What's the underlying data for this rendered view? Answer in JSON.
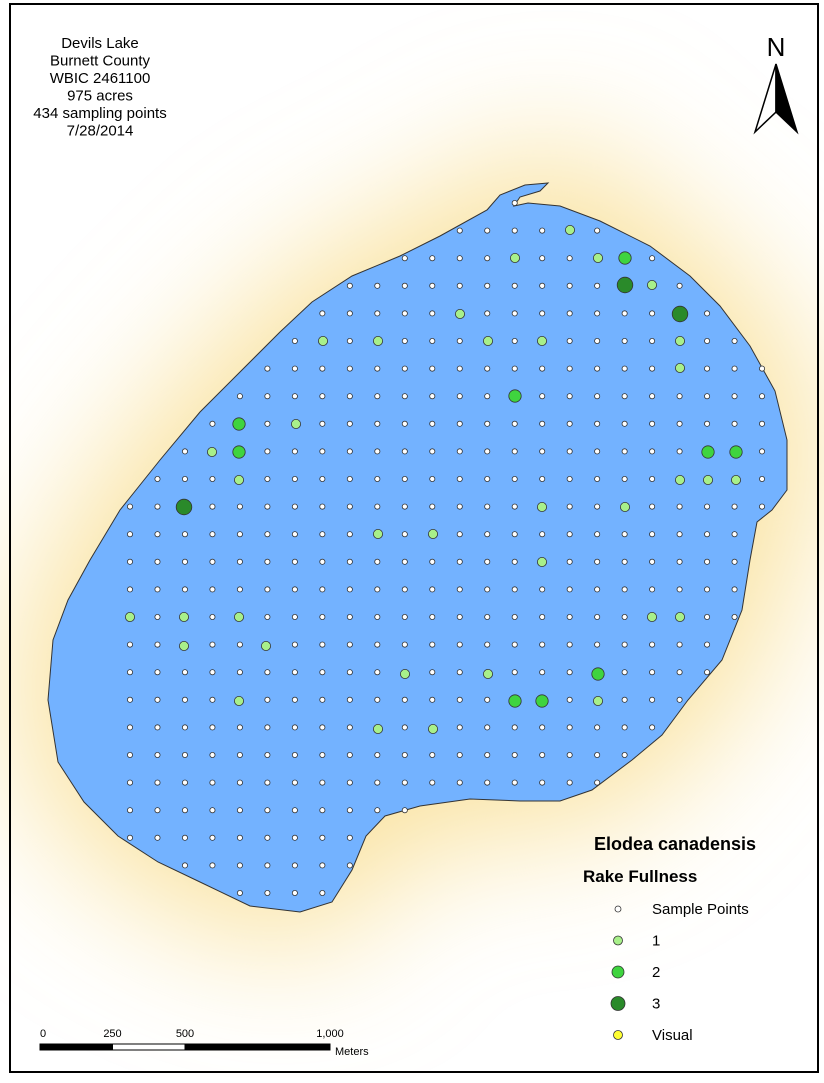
{
  "header": {
    "lines": [
      "Devils Lake",
      "Burnett County",
      "WBIC 2461100",
      "975 acres",
      "434 sampling points",
      "7/28/2014"
    ]
  },
  "north_arrow": "N",
  "legend": {
    "title": "Elodea canadensis",
    "subtitle": "Rake Fullness",
    "items": [
      {
        "label": "Sample Points",
        "color": "#ffffff"
      },
      {
        "label": "1",
        "color": "#a8f08a"
      },
      {
        "label": "2",
        "color": "#3fd43f"
      },
      {
        "label": "3",
        "color": "#2a8a2a"
      },
      {
        "label": "Visual",
        "color": "#ffff33"
      }
    ]
  },
  "scale_bar": {
    "ticks": [
      0,
      250,
      500,
      {
        "value": 1000,
        "label": "1,000"
      }
    ],
    "unit": "Meters"
  },
  "observations": [
    1,
    1,
    1,
    2,
    3,
    1,
    1,
    3,
    1,
    1,
    1,
    1,
    1,
    1,
    2,
    2,
    1,
    1,
    2,
    2,
    2,
    1,
    1,
    1,
    1,
    3,
    1,
    1,
    1,
    1,
    1,
    1,
    1,
    1,
    1,
    1,
    1,
    1,
    1,
    1,
    2,
    1,
    2,
    2,
    1,
    1,
    1
  ]
}
